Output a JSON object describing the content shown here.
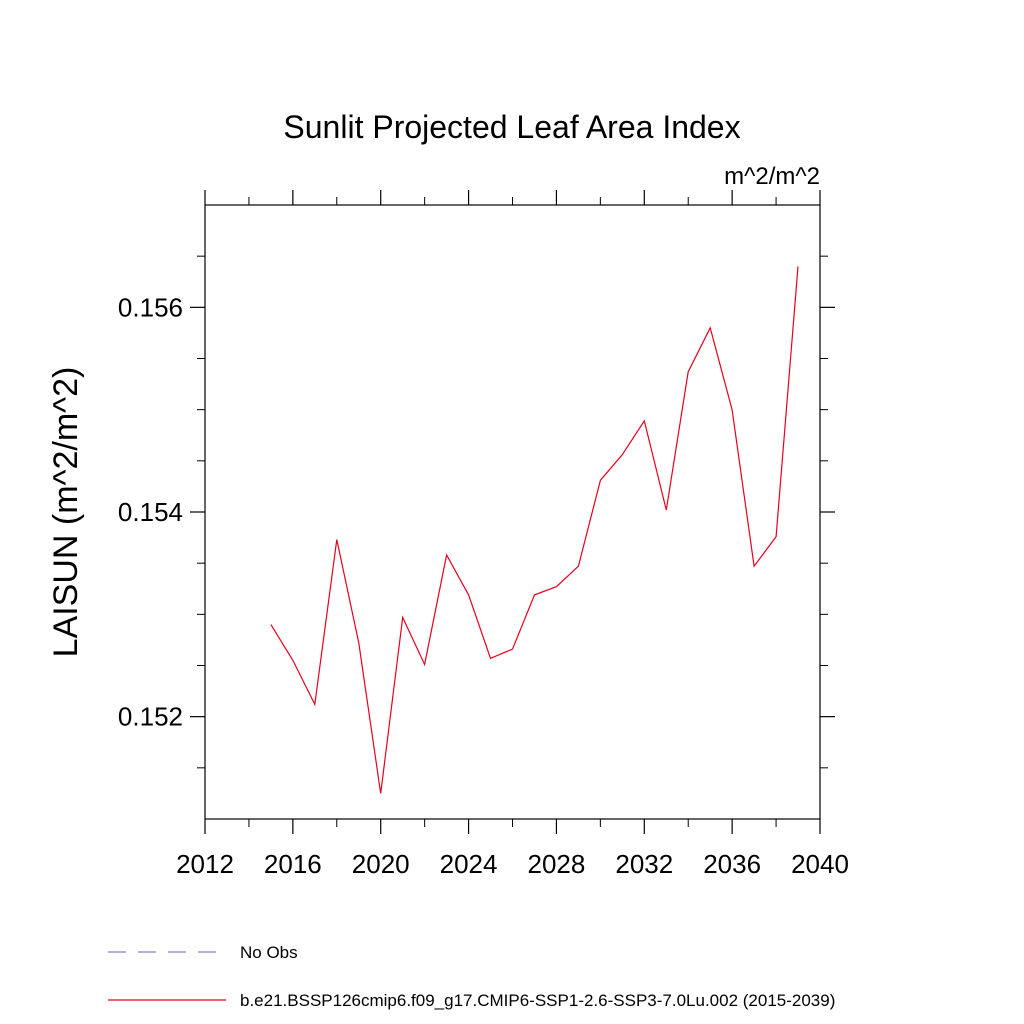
{
  "chart_data": {
    "type": "line",
    "title": "Sunlit Projected Leaf Area Index",
    "units": "m^2/m^2",
    "xlabel": "",
    "ylabel": "LAISUN  (m^2/m^2)",
    "xlim": [
      2012,
      2040
    ],
    "ylim": [
      0.151,
      0.157
    ],
    "x_ticks": [
      2012,
      2016,
      2020,
      2024,
      2028,
      2032,
      2036,
      2040
    ],
    "x_minor_ticks": [
      2014,
      2018,
      2022,
      2026,
      2030,
      2034,
      2038
    ],
    "y_ticks": [
      0.152,
      0.154,
      0.156
    ],
    "y_tick_labels": [
      "0.152",
      "0.154",
      "0.156"
    ],
    "y_minor_ticks": [
      0.1515,
      0.1525,
      0.153,
      0.1535,
      0.1545,
      0.155,
      0.1555,
      0.1565
    ],
    "grid": false,
    "legend_position": "bottom-left",
    "series": [
      {
        "name": "No Obs",
        "color": "#8a7fc2",
        "style": "dashed",
        "x": [],
        "values": []
      },
      {
        "name": "b.e21.BSSP126cmip6.f09_g17.CMIP6-SSP1-2.6-SSP3-7.0Lu.002 (2015-2039)",
        "color": "#e8001c",
        "style": "solid",
        "x": [
          2015,
          2016,
          2017,
          2018,
          2019,
          2020,
          2021,
          2022,
          2023,
          2024,
          2025,
          2026,
          2027,
          2028,
          2029,
          2030,
          2031,
          2032,
          2033,
          2034,
          2035,
          2036,
          2037,
          2038,
          2039
        ],
        "values": [
          0.1529,
          0.15255,
          0.15212,
          0.15373,
          0.15272,
          0.15125,
          0.15297,
          0.15251,
          0.15358,
          0.15319,
          0.15257,
          0.15266,
          0.15319,
          0.15327,
          0.15347,
          0.15431,
          0.15456,
          0.15489,
          0.15402,
          0.15537,
          0.1558,
          0.155,
          0.15347,
          0.15376,
          0.1564
        ]
      }
    ]
  }
}
